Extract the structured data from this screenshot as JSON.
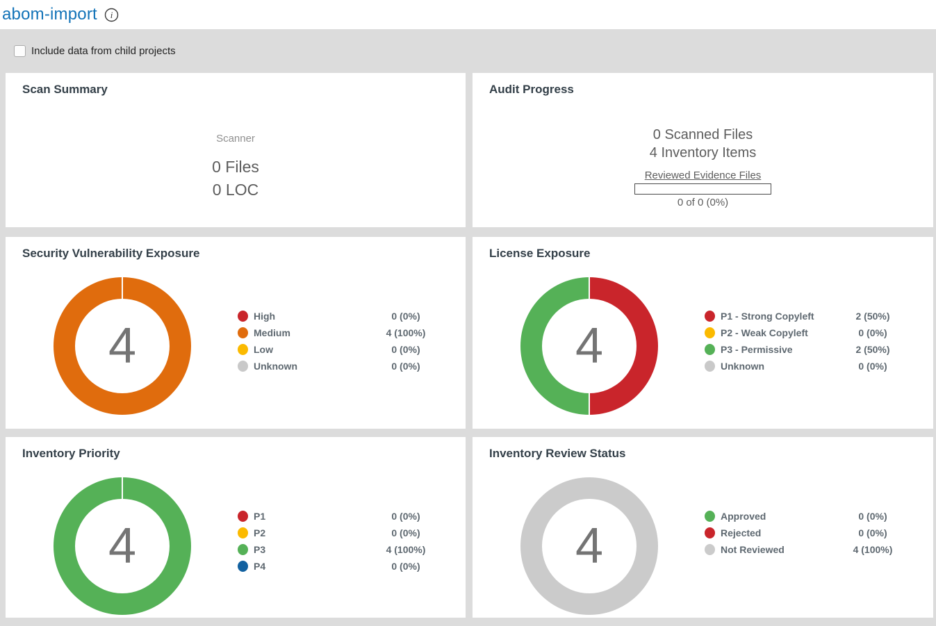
{
  "header": {
    "title": "abom-import"
  },
  "toolbar": {
    "checkbox_label": "Include data from child projects",
    "checkbox_checked": false
  },
  "scan_summary": {
    "title": "Scan Summary",
    "scanner_label": "Scanner",
    "files": "0 Files",
    "loc": "0 LOC"
  },
  "audit_progress": {
    "title": "Audit Progress",
    "scanned_files": "0 Scanned Files",
    "inventory_items": "4 Inventory Items",
    "reviewed_label": "Reviewed Evidence Files",
    "progress_percent": 0,
    "progress_text": "0 of 0 (0%)"
  },
  "chart_data": [
    {
      "type": "pie",
      "title": "Security Vulnerability Exposure",
      "total": 4,
      "seam_angles": [
        0
      ],
      "legend_position": "right",
      "segments": [
        {
          "label": "High",
          "value": 0,
          "display": "0 (0%)",
          "color": "#c9252b"
        },
        {
          "label": "Medium",
          "value": 4,
          "display": "4 (100%)",
          "color": "#e06c0d"
        },
        {
          "label": "Low",
          "value": 0,
          "display": "0 (0%)",
          "color": "#fbba00"
        },
        {
          "label": "Unknown",
          "value": 0,
          "display": "0 (0%)",
          "color": "#c9c9c9"
        }
      ]
    },
    {
      "type": "pie",
      "title": "License Exposure",
      "total": 4,
      "seam_angles": [
        0,
        180
      ],
      "legend_position": "right",
      "segments": [
        {
          "label": "P1 - Strong Copyleft",
          "value": 2,
          "display": "2 (50%)",
          "color": "#c9252b"
        },
        {
          "label": "P2 - Weak Copyleft",
          "value": 0,
          "display": "0 (0%)",
          "color": "#fbba00"
        },
        {
          "label": "P3 - Permissive",
          "value": 2,
          "display": "2 (50%)",
          "color": "#55b157"
        },
        {
          "label": "Unknown",
          "value": 0,
          "display": "0 (0%)",
          "color": "#c9c9c9"
        }
      ]
    },
    {
      "type": "pie",
      "title": "Inventory Priority",
      "total": 4,
      "seam_angles": [
        0
      ],
      "legend_position": "right",
      "segments": [
        {
          "label": "P1",
          "value": 0,
          "display": "0 (0%)",
          "color": "#c9252b"
        },
        {
          "label": "P2",
          "value": 0,
          "display": "0 (0%)",
          "color": "#fbba00"
        },
        {
          "label": "P3",
          "value": 4,
          "display": "4 (100%)",
          "color": "#55b157"
        },
        {
          "label": "P4",
          "value": 0,
          "display": "0 (0%)",
          "color": "#1261a0"
        }
      ]
    },
    {
      "type": "pie",
      "title": "Inventory Review Status",
      "total": 4,
      "seam_angles": [],
      "legend_position": "right",
      "segments": [
        {
          "label": "Approved",
          "value": 0,
          "display": "0 (0%)",
          "color": "#55b157"
        },
        {
          "label": "Rejected",
          "value": 0,
          "display": "0 (0%)",
          "color": "#c9252b"
        },
        {
          "label": "Not Reviewed",
          "value": 4,
          "display": "4 (100%)",
          "color": "#cbcbcb"
        }
      ]
    }
  ]
}
